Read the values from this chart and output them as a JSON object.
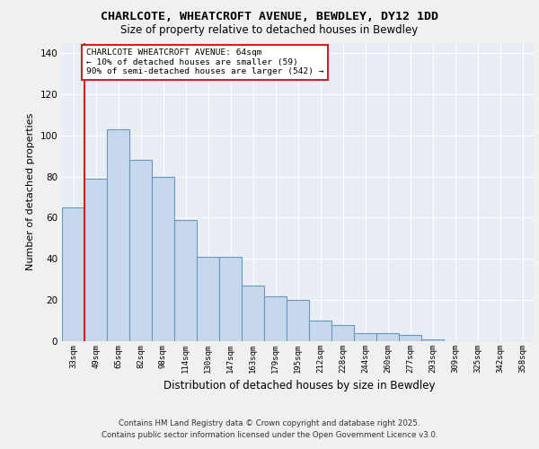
{
  "title_line1": "CHARLCOTE, WHEATCROFT AVENUE, BEWDLEY, DY12 1DD",
  "title_line2": "Size of property relative to detached houses in Bewdley",
  "xlabel": "Distribution of detached houses by size in Bewdley",
  "ylabel": "Number of detached properties",
  "categories": [
    "33sqm",
    "49sqm",
    "65sqm",
    "82sqm",
    "98sqm",
    "114sqm",
    "130sqm",
    "147sqm",
    "163sqm",
    "179sqm",
    "195sqm",
    "212sqm",
    "228sqm",
    "244sqm",
    "260sqm",
    "277sqm",
    "293sqm",
    "309sqm",
    "325sqm",
    "342sqm",
    "358sqm"
  ],
  "values": [
    65,
    79,
    103,
    88,
    80,
    59,
    41,
    41,
    27,
    22,
    20,
    10,
    8,
    4,
    4,
    3,
    1,
    0,
    0,
    0,
    0
  ],
  "bar_color": "#c8d8ec",
  "bar_edge_color": "#6699bb",
  "vline_x_index": 1,
  "annotation_text": "CHARLCOTE WHEATCROFT AVENUE: 64sqm\n← 10% of detached houses are smaller (59)\n90% of semi-detached houses are larger (542) →",
  "annotation_box_facecolor": "#ffffff",
  "annotation_box_edgecolor": "#cc2222",
  "vline_color": "#cc2222",
  "ylim": [
    0,
    145
  ],
  "yticks": [
    0,
    20,
    40,
    60,
    80,
    100,
    120,
    140
  ],
  "background_color": "#e8eef4",
  "grid_color": "#ffffff",
  "footer1": "Contains HM Land Registry data © Crown copyright and database right 2025.",
  "footer2": "Contains public sector information licensed under the Open Government Licence v3.0."
}
